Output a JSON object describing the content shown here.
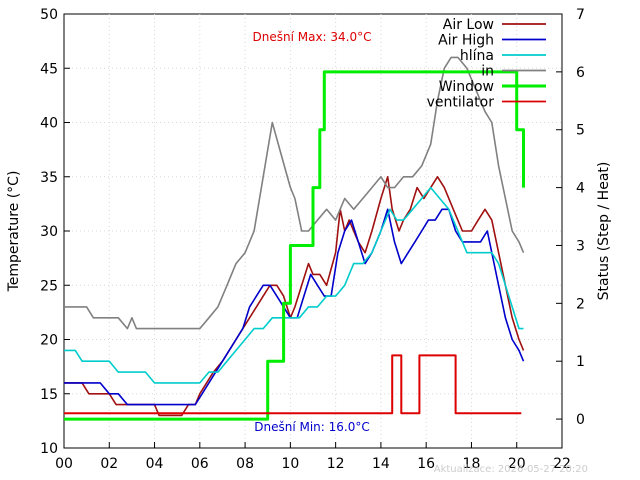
{
  "chart_data": {
    "type": "line",
    "title": "",
    "xlabel": "",
    "ylabel": "Temperature (°C)",
    "y2label": "Status (Step / Heat)",
    "xlim": [
      0,
      22
    ],
    "ylim": [
      10,
      50
    ],
    "y2lim": [
      -0.5,
      7
    ],
    "x_ticks": [
      "00",
      "02",
      "04",
      "06",
      "08",
      "10",
      "12",
      "14",
      "16",
      "18",
      "20",
      "22"
    ],
    "y_ticks": [
      "10",
      "15",
      "20",
      "25",
      "30",
      "35",
      "40",
      "45",
      "50"
    ],
    "y2_ticks": [
      "0",
      "1",
      "2",
      "3",
      "4",
      "5",
      "6",
      "7"
    ],
    "grid": true,
    "legend_position": "top-right",
    "annotations": {
      "max_text": "Dnešní Max: 34.0°C",
      "min_text": "Dnešní Min: 16.0°C",
      "updated_text": "Aktualizace: 2026-05-27 20:20"
    },
    "series": [
      {
        "name": "Air Low",
        "color": "#a01010",
        "axis": "y",
        "x": [
          0,
          0.8,
          1.1,
          1.5,
          2.0,
          2.3,
          2.6,
          2.9,
          3.2,
          3.6,
          4.0,
          4.2,
          4.5,
          4.8,
          5.2,
          5.5,
          5.8,
          6.0,
          6.3,
          6.6,
          7.0,
          7.3,
          7.6,
          7.9,
          8.2,
          8.5,
          8.8,
          9.1,
          9.4,
          9.7,
          10.0,
          10.2,
          10.5,
          10.8,
          11.0,
          11.3,
          11.6,
          12.0,
          12.2,
          12.4,
          12.6,
          12.8,
          13.0,
          13.3,
          13.6,
          14.0,
          14.3,
          14.5,
          14.8,
          15.0,
          15.3,
          15.6,
          15.9,
          16.2,
          16.5,
          16.8,
          17.2,
          17.6,
          18.0,
          18.3,
          18.6,
          18.9,
          19.2,
          19.5,
          19.8,
          20.1,
          20.3
        ],
        "y": [
          16,
          16,
          15,
          15,
          15,
          14,
          14,
          14,
          14,
          14,
          14,
          13,
          13,
          13,
          13,
          14,
          14,
          15,
          16,
          17,
          18,
          19,
          20,
          21,
          22,
          23,
          24,
          25,
          25,
          24,
          22,
          23,
          25,
          27,
          26,
          26,
          25,
          28,
          32,
          30,
          31,
          30,
          29,
          28,
          30,
          33,
          35,
          32,
          30,
          31,
          32,
          34,
          33,
          34,
          35,
          34,
          32,
          30,
          30,
          31,
          32,
          31,
          28,
          25,
          22,
          20,
          19
        ]
      },
      {
        "name": "Air High",
        "color": "#0000cc",
        "axis": "y",
        "x": [
          0,
          0.8,
          1.2,
          1.6,
          2.0,
          2.4,
          2.8,
          3.2,
          3.6,
          4.0,
          4.4,
          4.8,
          5.2,
          5.5,
          5.8,
          6.1,
          6.4,
          6.7,
          7.0,
          7.3,
          7.6,
          7.9,
          8.2,
          8.5,
          8.8,
          9.1,
          9.4,
          9.7,
          10.0,
          10.3,
          10.6,
          10.9,
          11.2,
          11.5,
          11.8,
          12.1,
          12.4,
          12.7,
          13.0,
          13.3,
          13.6,
          14.0,
          14.3,
          14.6,
          14.9,
          15.2,
          15.5,
          15.8,
          16.1,
          16.4,
          16.7,
          17.0,
          17.3,
          17.6,
          18.0,
          18.4,
          18.7,
          18.9,
          19.2,
          19.5,
          19.8,
          20.1,
          20.3
        ],
        "y": [
          16,
          16,
          16,
          16,
          15,
          15,
          14,
          14,
          14,
          14,
          14,
          14,
          14,
          14,
          14,
          15,
          16,
          17,
          18,
          19,
          20,
          21,
          23,
          24,
          25,
          25,
          24,
          23,
          22,
          22,
          24,
          26,
          25,
          24,
          24,
          28,
          30,
          31,
          29,
          27,
          28,
          30,
          32,
          29,
          27,
          28,
          29,
          30,
          31,
          31,
          32,
          32,
          30,
          29,
          29,
          29,
          30,
          28,
          25,
          22,
          20,
          19,
          18
        ]
      },
      {
        "name": "hlína",
        "color": "#00cccc",
        "axis": "y",
        "x": [
          0,
          0.5,
          0.8,
          1.2,
          1.6,
          2.0,
          2.4,
          2.8,
          3.2,
          3.6,
          4.0,
          4.4,
          4.8,
          5.2,
          5.6,
          6.0,
          6.4,
          6.8,
          7.2,
          7.6,
          8.0,
          8.4,
          8.8,
          9.2,
          9.6,
          10.0,
          10.4,
          10.8,
          11.2,
          11.6,
          12.0,
          12.4,
          12.8,
          13.2,
          13.6,
          14.0,
          14.4,
          14.7,
          15.0,
          15.4,
          15.8,
          16.2,
          16.6,
          17.0,
          17.4,
          17.8,
          18.2,
          18.6,
          18.9,
          19.2,
          19.5,
          19.8,
          20.1,
          20.3
        ],
        "y": [
          19,
          19,
          18,
          18,
          18,
          18,
          17,
          17,
          17,
          17,
          16,
          16,
          16,
          16,
          16,
          16,
          17,
          17,
          18,
          19,
          20,
          21,
          21,
          22,
          22,
          22,
          22,
          23,
          23,
          24,
          24,
          25,
          27,
          27,
          28,
          30,
          32,
          31,
          31,
          32,
          33,
          34,
          33,
          32,
          30,
          28,
          28,
          28,
          28,
          27,
          25,
          23,
          21,
          21
        ]
      },
      {
        "name": "in",
        "color": "#808080",
        "axis": "y",
        "x": [
          0,
          0.5,
          1.0,
          1.3,
          1.6,
          2.0,
          2.4,
          2.8,
          3.0,
          3.2,
          3.6,
          4.0,
          4.5,
          5.0,
          5.5,
          6.0,
          6.4,
          6.8,
          7.2,
          7.6,
          8.0,
          8.4,
          8.8,
          9.2,
          9.6,
          10.0,
          10.2,
          10.5,
          10.8,
          11.2,
          11.6,
          12.0,
          12.4,
          12.8,
          13.2,
          13.6,
          14.0,
          14.3,
          14.6,
          15.0,
          15.4,
          15.8,
          16.2,
          16.5,
          16.8,
          17.1,
          17.4,
          17.8,
          18.2,
          18.6,
          18.9,
          19.2,
          19.5,
          19.8,
          20.1,
          20.3
        ],
        "y": [
          23,
          23,
          23,
          22,
          22,
          22,
          22,
          21,
          22,
          21,
          21,
          21,
          21,
          21,
          21,
          21,
          22,
          23,
          25,
          27,
          28,
          30,
          35,
          40,
          37,
          34,
          33,
          30,
          30,
          31,
          32,
          31,
          33,
          32,
          33,
          34,
          35,
          34,
          34,
          35,
          35,
          36,
          38,
          42,
          45,
          46,
          46,
          45,
          43,
          41,
          40,
          36,
          33,
          30,
          29,
          28
        ]
      },
      {
        "name": "Window",
        "color": "#00ee00",
        "axis": "y2",
        "step": true,
        "x": [
          0,
          9.0,
          9.7,
          10.0,
          11.0,
          11.3,
          11.5,
          13.0,
          15.0,
          17.0,
          19.0,
          20.0,
          20.3
        ],
        "y": [
          0,
          1,
          2,
          3,
          4,
          5,
          6,
          6,
          6,
          6,
          6,
          5,
          4
        ]
      },
      {
        "name": "ventilator",
        "color": "#dd0000",
        "axis": "y2",
        "step": true,
        "x": [
          0,
          8.0,
          12.0,
          14.5,
          14.9,
          15.7,
          17.3,
          18.0,
          20.2
        ],
        "y": [
          0.1,
          0.1,
          0.1,
          1.1,
          0.1,
          1.1,
          0.1,
          0.1,
          0.1
        ]
      }
    ]
  }
}
